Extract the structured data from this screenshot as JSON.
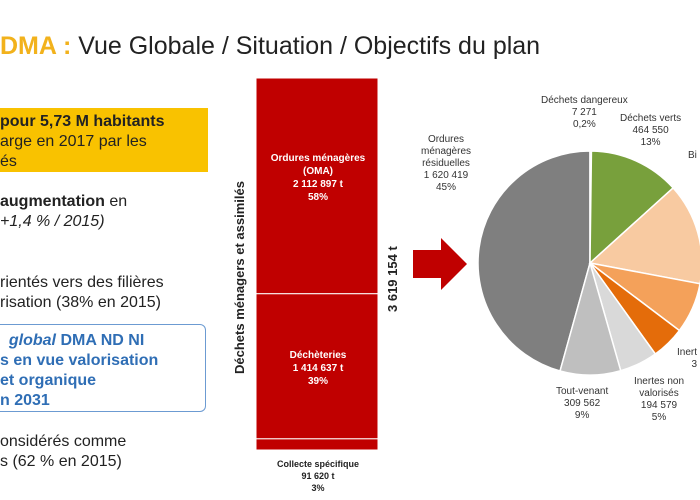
{
  "header": {
    "title_accent": "DMA :",
    "title_rest": " Vue Globale / Situation / Objectifs du plan"
  },
  "left": {
    "box_line1": "pour 5,73 M habitants",
    "box_line2": "arge en 2017 par les",
    "box_line3": "és",
    "aug_bold": "augmentation",
    "aug_rest": " en",
    "aug_line2": "+1,4 % / 2015)",
    "orient_line1": "rientés vers des filières",
    "orient_line2": "risation (38% en 2015)",
    "obj_line1_italic": "global",
    "obj_line1_rest": " DMA ND NI",
    "obj_line2": "s en vue valorisation",
    "obj_line3": "et organique",
    "obj_line4": "n 2031",
    "cons_line1": "onsidérés comme",
    "cons_line2": "s (62 % en 2015)"
  },
  "colors": {
    "bar": "#c00000",
    "arrow": "#c00000",
    "accent": "#f2b21c"
  },
  "chart_data": [
    {
      "type": "bar",
      "stacked": true,
      "ylabel": "Déchets ménagers et assimilés",
      "total_label": "3 619 154 t",
      "segments": [
        {
          "name": "Ordures ménagères (OMA)",
          "value_label": "2 112 897 t",
          "pct_label": "58%",
          "pct": 58
        },
        {
          "name": "Déchèteries",
          "value_label": "1 414 637 t",
          "pct_label": "39%",
          "pct": 39
        },
        {
          "name": "Collecte spécifique",
          "value_label": "91 620 t",
          "pct_label": "3%",
          "pct": 3
        }
      ]
    },
    {
      "type": "pie",
      "slices": [
        {
          "name": "Ordures ménagères résiduelles",
          "value": 1620419,
          "value_label": "1 620 419",
          "pct_label": "45%",
          "color": "#7f7f7f"
        },
        {
          "name": "Déchets dangereux",
          "value": 7271,
          "value_label": "7 271",
          "pct_label": "0,2%",
          "color": "#5b7f2b"
        },
        {
          "name": "Déchets verts",
          "value": 464550,
          "value_label": "464 550",
          "pct_label": "13%",
          "color": "#78a03c"
        },
        {
          "name": "Bi",
          "value": 520000,
          "value_label": "",
          "pct_label": "",
          "color": "#f8caa1"
        },
        {
          "name": "",
          "value": 260000,
          "value_label": "",
          "pct_label": "",
          "color": "#f4a15a"
        },
        {
          "name": "Inert",
          "value": 170000,
          "value_label": "",
          "pct_label": "3",
          "color": "#e46c0a"
        },
        {
          "name": "Inertes non valorisés",
          "value": 194579,
          "value_label": "194 579",
          "pct_label": "5%",
          "color": "#d9d9d9"
        },
        {
          "name": "Tout-venant",
          "value": 309562,
          "value_label": "309 562",
          "pct_label": "9%",
          "color": "#bfbfbf"
        }
      ]
    }
  ]
}
